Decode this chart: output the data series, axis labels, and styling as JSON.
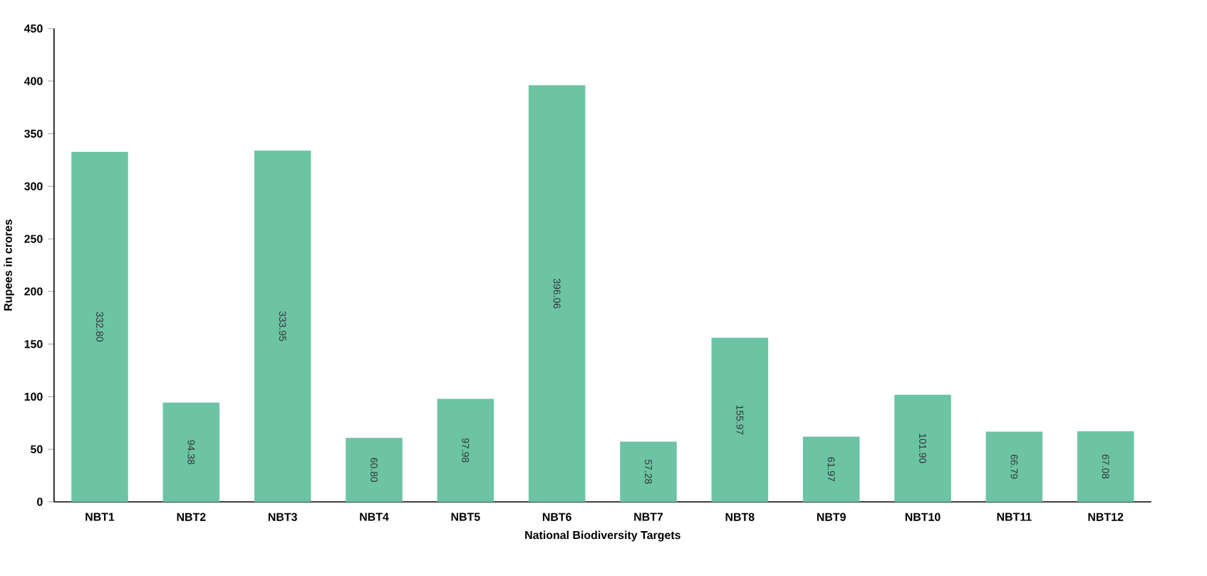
{
  "chart_data": {
    "type": "bar",
    "xlabel": "National Biodiversity Targets",
    "ylabel": "Rupees in crores",
    "categories": [
      "NBT1",
      "NBT2",
      "NBT3",
      "NBT4",
      "NBT5",
      "NBT6",
      "NBT7",
      "NBT8",
      "NBT9",
      "NBT10",
      "NBT11",
      "NBT12"
    ],
    "values": [
      332.8,
      94.38,
      333.95,
      60.8,
      97.98,
      396.06,
      57.28,
      155.97,
      61.97,
      101.9,
      66.79,
      67.08
    ],
    "color": "#6cc4a4",
    "ylim": [
      0,
      450
    ],
    "yticks": [
      0,
      50,
      100,
      150,
      200,
      250,
      300,
      350,
      400,
      450
    ],
    "value_labels": [
      "332.80",
      "94.38",
      "333.95",
      "60.80",
      "97.98",
      "396.06",
      "57.28",
      "155.97",
      "61.97",
      "101.90",
      "66.79",
      "67.08"
    ],
    "grid": false
  }
}
